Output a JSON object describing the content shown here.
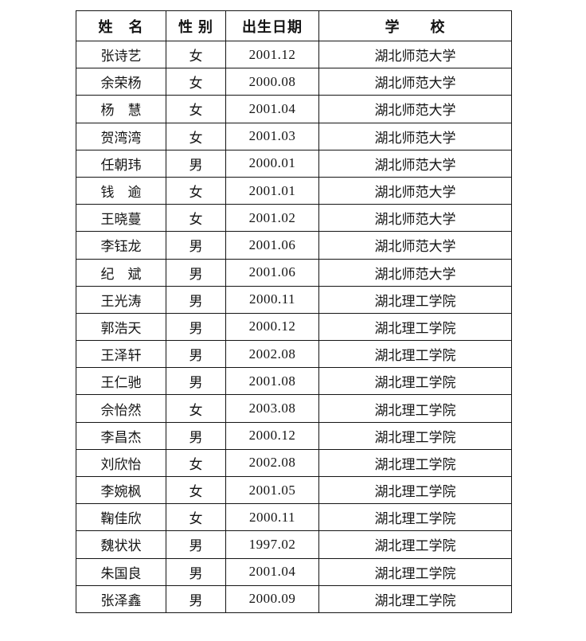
{
  "page": {
    "background_color": "#ffffff",
    "text_color": "#141414",
    "border_color": "#141414"
  },
  "table": {
    "headers": [
      {
        "key": "name",
        "label": "姓　名"
      },
      {
        "key": "gender",
        "label": "性 别"
      },
      {
        "key": "birth_date",
        "label": "出生日期"
      },
      {
        "key": "school",
        "label": "学　　校"
      }
    ],
    "rows": [
      {
        "name": "张诗艺",
        "gender": "女",
        "birth_date": "2001.12",
        "school": "湖北师范大学"
      },
      {
        "name": "余荣杨",
        "gender": "女",
        "birth_date": "2000.08",
        "school": "湖北师范大学"
      },
      {
        "name": "杨　慧",
        "gender": "女",
        "birth_date": "2001.04",
        "school": "湖北师范大学"
      },
      {
        "name": "贺湾湾",
        "gender": "女",
        "birth_date": "2001.03",
        "school": "湖北师范大学"
      },
      {
        "name": "任朝玮",
        "gender": "男",
        "birth_date": "2000.01",
        "school": "湖北师范大学"
      },
      {
        "name": "钱　逾",
        "gender": "女",
        "birth_date": "2001.01",
        "school": "湖北师范大学"
      },
      {
        "name": "王晓蔓",
        "gender": "女",
        "birth_date": "2001.02",
        "school": "湖北师范大学"
      },
      {
        "name": "李钰龙",
        "gender": "男",
        "birth_date": "2001.06",
        "school": "湖北师范大学"
      },
      {
        "name": "纪　斌",
        "gender": "男",
        "birth_date": "2001.06",
        "school": "湖北师范大学"
      },
      {
        "name": "王光涛",
        "gender": "男",
        "birth_date": "2000.11",
        "school": "湖北理工学院"
      },
      {
        "name": "郭浩天",
        "gender": "男",
        "birth_date": "2000.12",
        "school": "湖北理工学院"
      },
      {
        "name": "王泽轩",
        "gender": "男",
        "birth_date": "2002.08",
        "school": "湖北理工学院"
      },
      {
        "name": "王仁驰",
        "gender": "男",
        "birth_date": "2001.08",
        "school": "湖北理工学院"
      },
      {
        "name": "佘怡然",
        "gender": "女",
        "birth_date": "2003.08",
        "school": "湖北理工学院"
      },
      {
        "name": "李昌杰",
        "gender": "男",
        "birth_date": "2000.12",
        "school": "湖北理工学院"
      },
      {
        "name": "刘欣怡",
        "gender": "女",
        "birth_date": "2002.08",
        "school": "湖北理工学院"
      },
      {
        "name": "李婉枫",
        "gender": "女",
        "birth_date": "2001.05",
        "school": "湖北理工学院"
      },
      {
        "name": "鞠佳欣",
        "gender": "女",
        "birth_date": "2000.11",
        "school": "湖北理工学院"
      },
      {
        "name": "魏状状",
        "gender": "男",
        "birth_date": "1997.02",
        "school": "湖北理工学院"
      },
      {
        "name": "朱国良",
        "gender": "男",
        "birth_date": "2001.04",
        "school": "湖北理工学院"
      },
      {
        "name": "张泽鑫",
        "gender": "男",
        "birth_date": "2000.09",
        "school": "湖北理工学院"
      }
    ]
  }
}
